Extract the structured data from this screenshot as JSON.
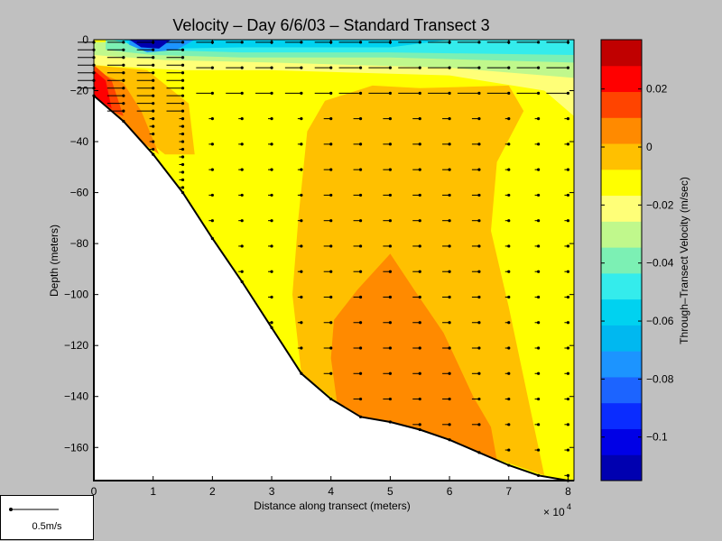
{
  "chart_data": {
    "type": "heatmap",
    "title": "Velocity – Day 6/6/03 – Standard Transect 3",
    "xlabel": "Distance along transect (meters)",
    "ylabel": "Depth (meters)",
    "x_exponent_label": "× 10",
    "x_exponent_power": "4",
    "xlim": [
      0,
      8.1
    ],
    "ylim": [
      -173,
      0
    ],
    "xticks": [
      "0",
      "1",
      "2",
      "3",
      "4",
      "5",
      "6",
      "7",
      "8"
    ],
    "yticks": [
      "0",
      "−20",
      "−40",
      "−60",
      "−80",
      "−100",
      "−120",
      "−140",
      "−160"
    ],
    "bottom_profile": {
      "x": [
        0,
        0.5,
        1,
        1.5,
        2,
        2.5,
        3,
        3.5,
        4,
        4.5,
        5,
        5.5,
        6,
        6.5,
        7,
        7.5,
        8
      ],
      "depth": [
        -22,
        -32,
        -45,
        -60,
        -78,
        -95,
        -113,
        -131,
        -141,
        -148,
        -150,
        -153,
        -157,
        -162,
        -167,
        -171,
        -173
      ]
    },
    "colorbar": {
      "label": "Through–Transect Velocity (m/sec)",
      "range": [
        -0.115,
        0.037
      ],
      "ticks": [
        "−0.1",
        "−0.08",
        "−0.06",
        "−0.04",
        "−0.02",
        "0",
        "0.02"
      ],
      "tick_values": [
        -0.1,
        -0.08,
        -0.06,
        -0.04,
        -0.02,
        0,
        0.02
      ],
      "levels": 15,
      "colors": [
        "#0000b0",
        "#0000e6",
        "#0a2cff",
        "#1c64ff",
        "#1c94ff",
        "#00b8f0",
        "#00d2f0",
        "#34ecec",
        "#7cf0b4",
        "#c0f88c",
        "#ffff78",
        "#ffff00",
        "#ffc000",
        "#ff8a00",
        "#ff4400",
        "#ff0000",
        "#c00000"
      ]
    },
    "velocity_zones": [
      {
        "name": "surface-negative",
        "value": -0.1,
        "description": "strong negative near surface at x~0.8, depth 0-10"
      },
      {
        "name": "deep-positive",
        "value": 0.005,
        "description": "orange core x 3.7-7, depth 85-165"
      },
      {
        "name": "mid-slight-positive",
        "value": -0.005,
        "description": "light orange x 3.5-7, depth 20-170"
      },
      {
        "name": "near-shore-positive",
        "value": 0.02,
        "description": "red along slope x 0-1, depth 20-40"
      }
    ]
  },
  "scale_arrow": {
    "label": "0.5m/s"
  }
}
